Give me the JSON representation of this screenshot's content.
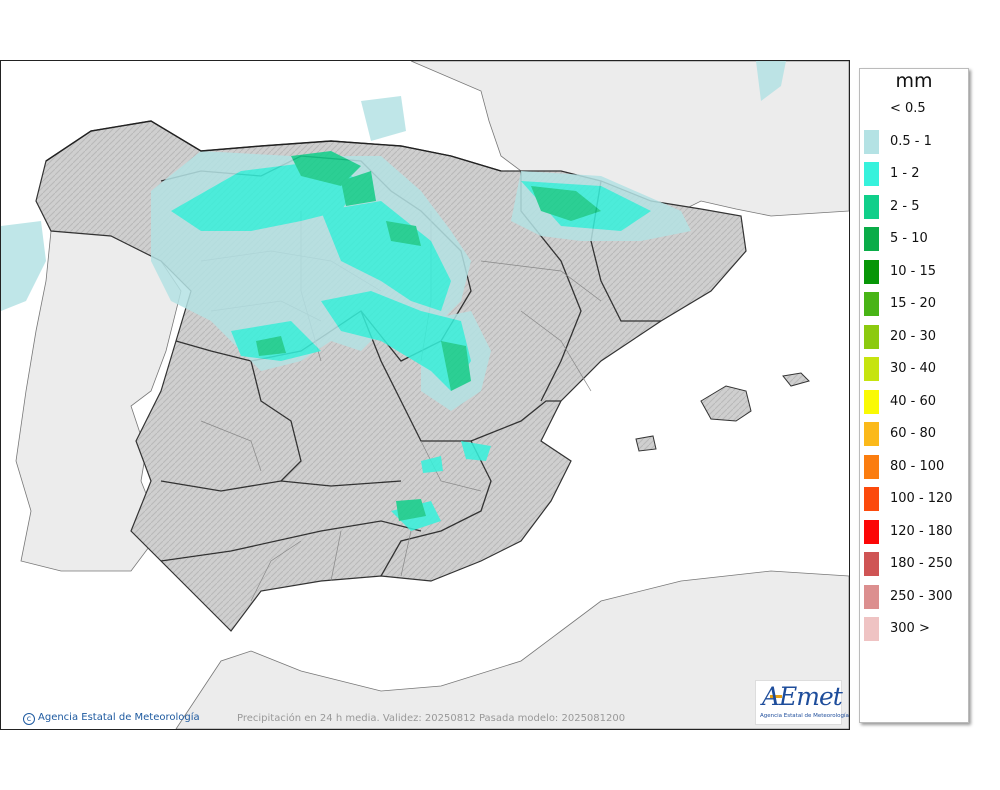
{
  "legend": {
    "unit": "mm",
    "items": [
      {
        "label": "< 0.5",
        "color": "#ffffff"
      },
      {
        "label": "0.5 - 1",
        "color": "#b4e2e4"
      },
      {
        "label": "1 - 2",
        "color": "#36f2dc"
      },
      {
        "label": "2 - 5",
        "color": "#10cf8a"
      },
      {
        "label": "5 - 10",
        "color": "#0aac48"
      },
      {
        "label": "10 - 15",
        "color": "#079607"
      },
      {
        "label": "15 - 20",
        "color": "#48b416"
      },
      {
        "label": "20 - 30",
        "color": "#8cca0f"
      },
      {
        "label": "30 - 40",
        "color": "#c6e40f"
      },
      {
        "label": "40 - 60",
        "color": "#fafa04"
      },
      {
        "label": "60 - 80",
        "color": "#fbb91a"
      },
      {
        "label": "80 - 100",
        "color": "#fb7d0f"
      },
      {
        "label": "100 - 120",
        "color": "#fc4a0c"
      },
      {
        "label": "120 - 180",
        "color": "#fc0606"
      },
      {
        "label": "180 - 250",
        "color": "#cf5454"
      },
      {
        "label": "250 - 300",
        "color": "#dc8f8f"
      },
      {
        "label": "300 >",
        "color": "#efc3c3"
      }
    ]
  },
  "map": {
    "credit": "Agencia Estatal de Meteorología",
    "caption": "Precipitación en 24 h media. Validez: 20250812 Pasada modelo: 2025081200",
    "logo_text": "AEmet",
    "logo_subtitle": "Agencia Estatal de Meteorología"
  }
}
